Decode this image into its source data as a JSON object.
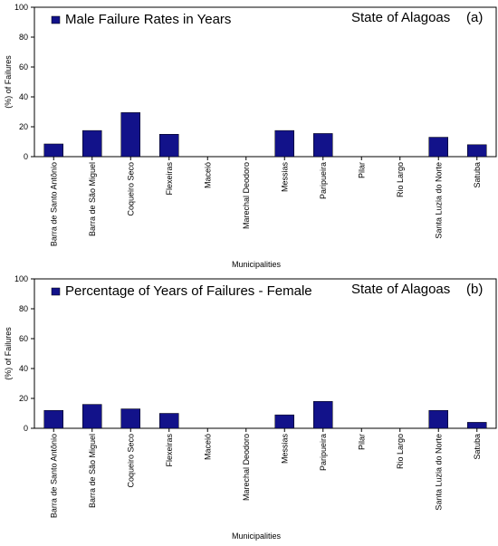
{
  "bar_color": "#12128a",
  "chart_data": [
    {
      "type": "bar",
      "series": [
        {
          "name": "Male Failure Rates in Years",
          "values": [
            8.5,
            17.5,
            29.5,
            15,
            0,
            0,
            17.5,
            15.5,
            0,
            0,
            13,
            8
          ]
        }
      ],
      "categories": [
        "Barra de Santo Antônio",
        "Barra de São Miguel",
        "Coqueiro Seco",
        "Flexeiras",
        "Maceió",
        "Marechal Deodoro",
        "Messias",
        "Paripueira",
        "Pilar",
        "Rio Largo",
        "Santa Luzia do Norte",
        "Satuba"
      ],
      "ylabel": "(%) of Failures",
      "xlabel": "Municipalities",
      "ylim": [
        0,
        100
      ],
      "yticks": [
        0,
        20,
        40,
        60,
        80,
        100
      ],
      "annotation": "State of Alagoas",
      "panel_label": "(a)",
      "legend_position": "top-left",
      "grid": false
    },
    {
      "type": "bar",
      "series": [
        {
          "name": "Percentage of Years of Failures - Female",
          "values": [
            12,
            16,
            13,
            10,
            0,
            0,
            9,
            18,
            0,
            0,
            12,
            4
          ]
        }
      ],
      "categories": [
        "Barra de Santo Antônio",
        "Barra de São Miguel",
        "Coqueiro Seco",
        "Flexeiras",
        "Maceió",
        "Marechal Deodoro",
        "Messias",
        "Paripueira",
        "Pilar",
        "Rio Largo",
        "Santa Luzia do Norte",
        "Satuba"
      ],
      "ylabel": "(%) of Failures",
      "xlabel": "Municipalities",
      "ylim": [
        0,
        100
      ],
      "yticks": [
        0,
        20,
        40,
        60,
        80,
        100
      ],
      "annotation": "State of Alagoas",
      "panel_label": "(b)",
      "legend_position": "top-left",
      "grid": false
    }
  ]
}
